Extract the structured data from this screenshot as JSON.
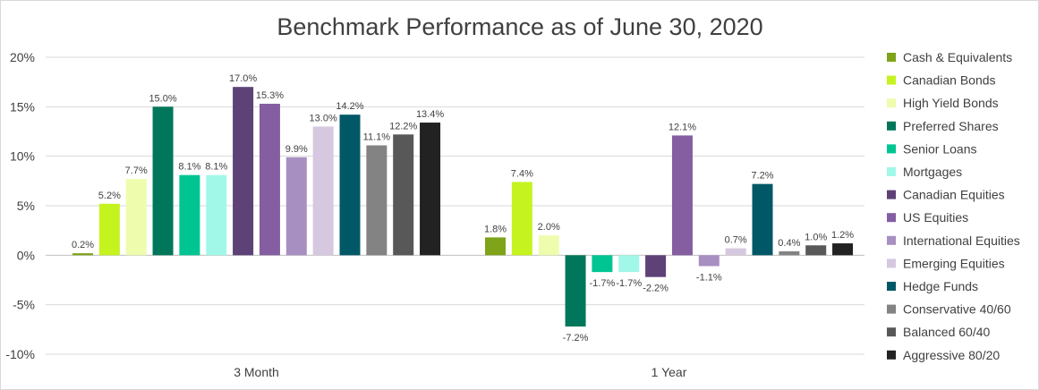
{
  "chart_data": {
    "type": "bar",
    "title": "Benchmark Performance as of June 30, 2020",
    "categories": [
      "3 Month",
      "1 Year"
    ],
    "ylim": [
      -10,
      20
    ],
    "yticks": [
      20,
      15,
      10,
      5,
      0,
      -5,
      -10
    ],
    "ytick_labels": [
      "20%",
      "15%",
      "10%",
      "5%",
      "0%",
      "-5%",
      "-10%"
    ],
    "grid": true,
    "legend_position": "right",
    "series": [
      {
        "name": "Cash & Equivalents",
        "color": "#7fa319",
        "values": [
          0.2,
          1.8
        ],
        "labels": [
          "0.2%",
          "1.8%"
        ]
      },
      {
        "name": "Canadian Bonds",
        "color": "#c5f31f",
        "values": [
          5.2,
          7.4
        ],
        "labels": [
          "5.2%",
          "7.4%"
        ]
      },
      {
        "name": "High Yield Bonds",
        "color": "#eefcae",
        "values": [
          7.7,
          2.0
        ],
        "labels": [
          "7.7%",
          "2.0%"
        ]
      },
      {
        "name": "Preferred Shares",
        "color": "#00775a",
        "values": [
          15.0,
          -7.2
        ],
        "labels": [
          "15.0%",
          "-7.2%"
        ]
      },
      {
        "name": "Senior Loans",
        "color": "#00c592",
        "values": [
          8.1,
          -1.7
        ],
        "labels": [
          "8.1%",
          "-1.7%"
        ]
      },
      {
        "name": "Mortgages",
        "color": "#a2f8e8",
        "values": [
          8.1,
          -1.7
        ],
        "labels": [
          "8.1%",
          "-1.7%"
        ]
      },
      {
        "name": "Canadian Equities",
        "color": "#5d4177",
        "values": [
          17.0,
          -2.2
        ],
        "labels": [
          "17.0%",
          "-2.2%"
        ]
      },
      {
        "name": "US Equities",
        "color": "#845ea1",
        "values": [
          15.3,
          12.1
        ],
        "labels": [
          "15.3%",
          "12.1%"
        ]
      },
      {
        "name": "International Equities",
        "color": "#a88fc2",
        "values": [
          9.9,
          -1.1
        ],
        "labels": [
          "9.9%",
          "-1.1%"
        ]
      },
      {
        "name": "Emerging Equities",
        "color": "#d6c8e0",
        "values": [
          13.0,
          0.7
        ],
        "labels": [
          "13.0%",
          "0.7%"
        ]
      },
      {
        "name": "Hedge Funds",
        "color": "#005867",
        "values": [
          14.2,
          7.2
        ],
        "labels": [
          "14.2%",
          "7.2%"
        ]
      },
      {
        "name": "Conservative 40/60",
        "color": "#838383",
        "values": [
          11.1,
          0.4
        ],
        "labels": [
          "11.1%",
          "0.4%"
        ]
      },
      {
        "name": "Balanced 60/40",
        "color": "#585858",
        "values": [
          12.2,
          1.0
        ],
        "labels": [
          "12.2%",
          "1.0%"
        ]
      },
      {
        "name": "Aggressive 80/20",
        "color": "#222222",
        "values": [
          13.4,
          1.2
        ],
        "labels": [
          "13.4%",
          "1.2%"
        ]
      }
    ]
  }
}
